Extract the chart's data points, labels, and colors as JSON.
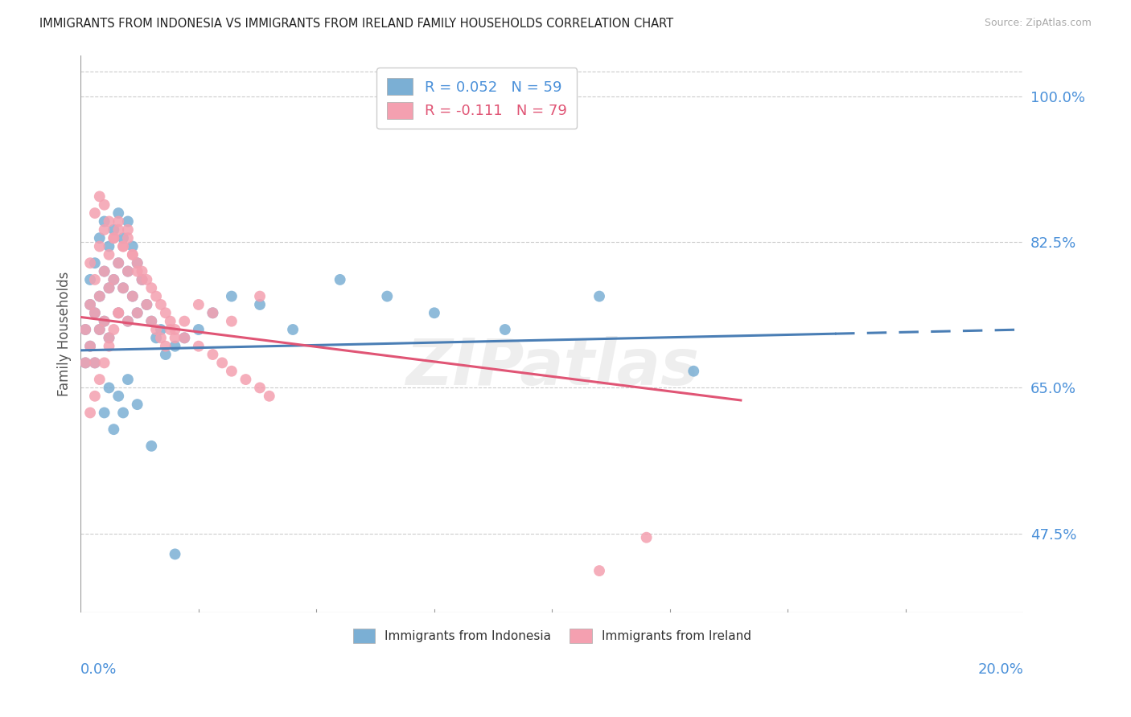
{
  "title": "IMMIGRANTS FROM INDONESIA VS IMMIGRANTS FROM IRELAND FAMILY HOUSEHOLDS CORRELATION CHART",
  "source": "Source: ZipAtlas.com",
  "ylabel": "Family Households",
  "ytick_labels": [
    "100.0%",
    "82.5%",
    "65.0%",
    "47.5%"
  ],
  "ytick_values": [
    1.0,
    0.825,
    0.65,
    0.475
  ],
  "xmin": 0.0,
  "xmax": 0.2,
  "ymin": 0.38,
  "ymax": 1.05,
  "color_indonesia": "#7bafd4",
  "color_ireland": "#f4a0b0",
  "color_indonesia_line": "#4a7eb5",
  "color_ireland_line": "#e05575",
  "color_axis_labels": "#4a90d9",
  "color_title": "#222222",
  "color_source": "#aaaaaa",
  "background": "#ffffff",
  "indonesia_x": [
    0.001,
    0.001,
    0.002,
    0.002,
    0.002,
    0.003,
    0.003,
    0.003,
    0.004,
    0.004,
    0.004,
    0.005,
    0.005,
    0.005,
    0.006,
    0.006,
    0.006,
    0.007,
    0.007,
    0.008,
    0.008,
    0.008,
    0.009,
    0.009,
    0.01,
    0.01,
    0.01,
    0.011,
    0.011,
    0.012,
    0.012,
    0.013,
    0.014,
    0.015,
    0.016,
    0.017,
    0.018,
    0.02,
    0.022,
    0.025,
    0.028,
    0.032,
    0.038,
    0.045,
    0.055,
    0.065,
    0.075,
    0.09,
    0.11,
    0.13,
    0.005,
    0.006,
    0.007,
    0.008,
    0.009,
    0.01,
    0.012,
    0.015,
    0.02
  ],
  "indonesia_y": [
    0.68,
    0.72,
    0.75,
    0.7,
    0.78,
    0.74,
    0.8,
    0.68,
    0.83,
    0.76,
    0.72,
    0.85,
    0.79,
    0.73,
    0.82,
    0.77,
    0.71,
    0.84,
    0.78,
    0.86,
    0.8,
    0.74,
    0.83,
    0.77,
    0.85,
    0.79,
    0.73,
    0.82,
    0.76,
    0.8,
    0.74,
    0.78,
    0.75,
    0.73,
    0.71,
    0.72,
    0.69,
    0.7,
    0.71,
    0.72,
    0.74,
    0.76,
    0.75,
    0.72,
    0.78,
    0.76,
    0.74,
    0.72,
    0.76,
    0.67,
    0.62,
    0.65,
    0.6,
    0.64,
    0.62,
    0.66,
    0.63,
    0.58,
    0.45
  ],
  "ireland_x": [
    0.001,
    0.001,
    0.002,
    0.002,
    0.002,
    0.003,
    0.003,
    0.003,
    0.004,
    0.004,
    0.004,
    0.005,
    0.005,
    0.005,
    0.006,
    0.006,
    0.006,
    0.007,
    0.007,
    0.008,
    0.008,
    0.008,
    0.009,
    0.009,
    0.01,
    0.01,
    0.01,
    0.011,
    0.011,
    0.012,
    0.012,
    0.013,
    0.014,
    0.015,
    0.016,
    0.017,
    0.018,
    0.019,
    0.02,
    0.022,
    0.025,
    0.028,
    0.032,
    0.038,
    0.003,
    0.004,
    0.005,
    0.006,
    0.007,
    0.008,
    0.009,
    0.01,
    0.011,
    0.012,
    0.013,
    0.014,
    0.015,
    0.016,
    0.017,
    0.018,
    0.019,
    0.02,
    0.022,
    0.025,
    0.028,
    0.03,
    0.032,
    0.035,
    0.038,
    0.04,
    0.002,
    0.003,
    0.004,
    0.005,
    0.006,
    0.007,
    0.008,
    0.12,
    0.11
  ],
  "ireland_y": [
    0.72,
    0.68,
    0.75,
    0.7,
    0.8,
    0.74,
    0.78,
    0.68,
    0.82,
    0.76,
    0.72,
    0.84,
    0.79,
    0.73,
    0.81,
    0.77,
    0.71,
    0.83,
    0.78,
    0.85,
    0.8,
    0.74,
    0.82,
    0.77,
    0.84,
    0.79,
    0.73,
    0.81,
    0.76,
    0.79,
    0.74,
    0.78,
    0.75,
    0.73,
    0.72,
    0.71,
    0.7,
    0.72,
    0.71,
    0.73,
    0.75,
    0.74,
    0.73,
    0.76,
    0.86,
    0.88,
    0.87,
    0.85,
    0.83,
    0.84,
    0.82,
    0.83,
    0.81,
    0.8,
    0.79,
    0.78,
    0.77,
    0.76,
    0.75,
    0.74,
    0.73,
    0.72,
    0.71,
    0.7,
    0.69,
    0.68,
    0.67,
    0.66,
    0.65,
    0.64,
    0.62,
    0.64,
    0.66,
    0.68,
    0.7,
    0.72,
    0.74,
    0.47,
    0.43
  ],
  "indonesia_line_x0": 0.0,
  "indonesia_line_x1": 0.16,
  "indonesia_line_x_dash": 0.16,
  "indonesia_line_x_end": 0.2,
  "indonesia_line_y0": 0.695,
  "indonesia_line_y1": 0.715,
  "ireland_line_x0": 0.0,
  "ireland_line_x1": 0.14,
  "ireland_line_y0": 0.735,
  "ireland_line_y1": 0.635
}
